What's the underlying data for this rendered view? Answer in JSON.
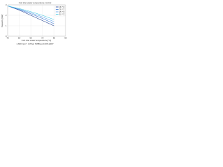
{
  "chart_data": {
    "type": "line",
    "title": "Coil inlet water temperature control",
    "x_label": "Coil inlet water temperature [°C]",
    "y_label": "Capacity [kW]",
    "note": "1,600 rpm*, 4.8 bar PWB and 20% EDP",
    "x": [
      40,
      50,
      60,
      70,
      80
    ],
    "series": [
      {
        "name": "45 °C",
        "color": "#1f3f8f",
        "values": [
          2.9,
          2.5,
          2.0,
          1.5,
          1.0
        ]
      },
      {
        "name": "35 °C",
        "color": "#2f6fd0",
        "values": [
          2.9,
          2.55,
          2.15,
          1.7,
          1.2
        ]
      },
      {
        "name": "25 °C",
        "color": "#5aa0e8",
        "values": [
          2.9,
          2.6,
          2.25,
          1.85,
          1.4
        ]
      },
      {
        "name": "15 °C",
        "color": "#40c8e0",
        "values": [
          2.9,
          2.65,
          2.35,
          2.0,
          1.6
        ]
      }
    ],
    "xlim": [
      40,
      90
    ],
    "xticks": [
      40,
      50,
      60,
      70,
      80,
      90
    ],
    "ylim": [
      0,
      3
    ],
    "yticks": [
      0,
      1,
      2,
      3
    ],
    "grid": true,
    "legend": "upper-right"
  }
}
